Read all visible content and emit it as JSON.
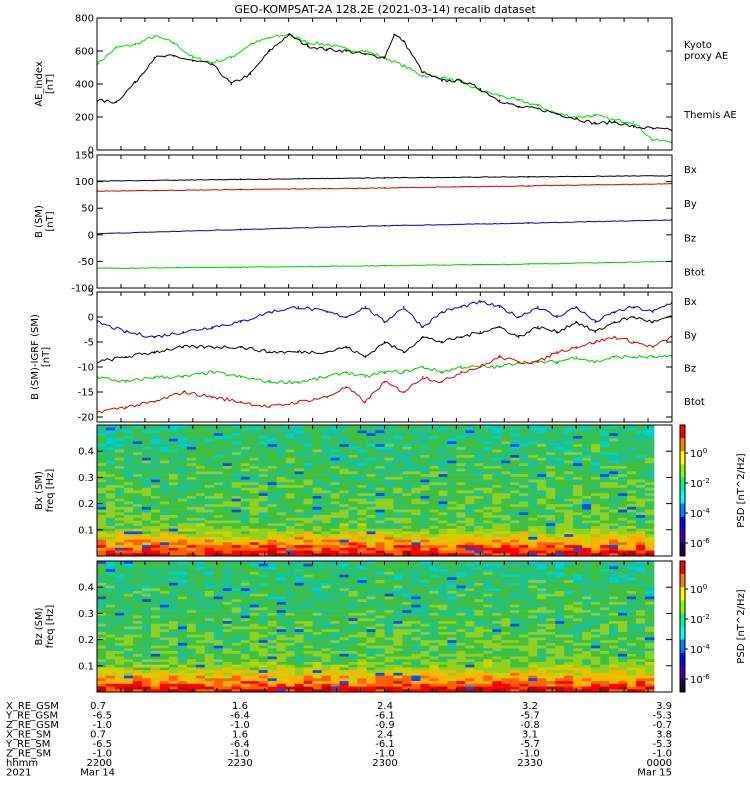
{
  "title": "GEO-KOMPSAT-2A 128.2E (2021-03-14) recalib dataset",
  "colors": {
    "themis": "#000000",
    "kyoto": "#00dd00",
    "bx": "#0000cc",
    "by": "#00cc00",
    "bz": "#dd0000",
    "btot": "#000000"
  },
  "chart_data": [
    {
      "type": "line",
      "ylabel": "AE_index\n[nT]",
      "ylim": [
        0,
        800
      ],
      "yticks": [
        0,
        200,
        400,
        600,
        800
      ],
      "xlim": [
        0,
        120
      ],
      "series": [
        {
          "name": "Kyoto\nproxy AE",
          "color": "#00dd00",
          "x": [
            0,
            4,
            8,
            12,
            16,
            20,
            24,
            28,
            32,
            36,
            40,
            44,
            48,
            52,
            56,
            60,
            64,
            68,
            72,
            76,
            80,
            84,
            88,
            92,
            96,
            100,
            104,
            108,
            112,
            116,
            120
          ],
          "y": [
            520,
            620,
            640,
            690,
            650,
            560,
            530,
            560,
            640,
            680,
            700,
            650,
            640,
            610,
            600,
            560,
            510,
            450,
            440,
            410,
            360,
            330,
            300,
            270,
            220,
            200,
            210,
            180,
            170,
            60,
            50
          ]
        },
        {
          "name": "Themis AE",
          "color": "#000000",
          "x": [
            0,
            4,
            8,
            12,
            16,
            20,
            24,
            28,
            32,
            36,
            40,
            44,
            48,
            52,
            56,
            60,
            62,
            64,
            68,
            72,
            76,
            80,
            84,
            88,
            92,
            96,
            100,
            104,
            108,
            112,
            116,
            120
          ],
          "y": [
            300,
            290,
            410,
            560,
            570,
            540,
            520,
            400,
            460,
            600,
            700,
            630,
            610,
            600,
            580,
            560,
            700,
            660,
            470,
            420,
            420,
            370,
            300,
            260,
            250,
            220,
            190,
            160,
            170,
            140,
            130,
            120
          ]
        }
      ],
      "legend_placement": "right"
    },
    {
      "type": "line",
      "ylabel": "B (SM)\n[nT]",
      "ylim": [
        -100,
        150
      ],
      "yticks": [
        -100,
        -50,
        0,
        50,
        100,
        150
      ],
      "xlim": [
        0,
        120
      ],
      "series": [
        {
          "name": "Bx",
          "color": "#0000cc",
          "x": [
            0,
            30,
            60,
            90,
            120
          ],
          "y": [
            2,
            10,
            17,
            22,
            28
          ]
        },
        {
          "name": "By",
          "color": "#00cc00",
          "x": [
            0,
            30,
            60,
            90,
            120
          ],
          "y": [
            -63,
            -61,
            -58,
            -55,
            -50
          ]
        },
        {
          "name": "Bz",
          "color": "#dd0000",
          "x": [
            0,
            30,
            60,
            90,
            120
          ],
          "y": [
            82,
            85,
            88,
            92,
            96
          ]
        },
        {
          "name": "Btot",
          "color": "#000000",
          "x": [
            0,
            30,
            60,
            90,
            120
          ],
          "y": [
            101,
            104,
            107,
            109,
            111
          ]
        }
      ],
      "legend_placement": "right"
    },
    {
      "type": "line",
      "ylabel": "B (SM)-IGRF (SM)\n[nT]",
      "ylim": [
        -21,
        5
      ],
      "yticks": [
        -20,
        -15,
        -10,
        -5,
        0,
        5
      ],
      "xlim": [
        0,
        120
      ],
      "series": [
        {
          "name": "Bx",
          "color": "#0000cc",
          "x": [
            0,
            6,
            12,
            18,
            24,
            30,
            36,
            42,
            48,
            52,
            56,
            60,
            64,
            68,
            72,
            76,
            80,
            84,
            88,
            92,
            96,
            100,
            104,
            108,
            112,
            116,
            120
          ],
          "y": [
            -1,
            -3,
            -4,
            -3,
            -2,
            -1,
            1,
            2,
            1,
            0,
            2,
            -1,
            2,
            -2,
            1,
            2,
            3,
            2,
            0,
            2,
            0,
            2,
            -1,
            1,
            2,
            1,
            3
          ]
        },
        {
          "name": "By",
          "color": "#00cc00",
          "x": [
            0,
            6,
            12,
            18,
            24,
            30,
            36,
            42,
            48,
            52,
            56,
            60,
            64,
            68,
            72,
            76,
            80,
            84,
            88,
            92,
            96,
            100,
            104,
            108,
            112,
            116,
            120
          ],
          "y": [
            -12,
            -13,
            -12,
            -12,
            -11,
            -12,
            -13,
            -13,
            -12,
            -11,
            -12,
            -11,
            -11,
            -10,
            -11,
            -10,
            -10,
            -10,
            -9,
            -9,
            -9,
            -8,
            -9,
            -8,
            -8,
            -8,
            -8
          ]
        },
        {
          "name": "Bz",
          "color": "#dd0000",
          "x": [
            0,
            6,
            12,
            18,
            24,
            30,
            36,
            42,
            48,
            52,
            56,
            60,
            64,
            68,
            72,
            76,
            80,
            84,
            88,
            92,
            96,
            100,
            104,
            108,
            112,
            116,
            120
          ],
          "y": [
            -19,
            -18,
            -17,
            -15,
            -16,
            -17,
            -18,
            -17,
            -16,
            -14,
            -17,
            -13,
            -15,
            -12,
            -13,
            -11,
            -10,
            -8,
            -9,
            -9,
            -7,
            -6,
            -5,
            -4,
            -5,
            -6,
            -4
          ]
        },
        {
          "name": "Btot",
          "color": "#000000",
          "x": [
            0,
            6,
            12,
            18,
            24,
            30,
            36,
            42,
            48,
            52,
            56,
            60,
            64,
            68,
            72,
            76,
            80,
            84,
            88,
            92,
            96,
            100,
            104,
            108,
            112,
            116,
            120
          ],
          "y": [
            -9,
            -8,
            -7,
            -6,
            -6,
            -6,
            -7,
            -7,
            -7,
            -6,
            -8,
            -5,
            -7,
            -4,
            -5,
            -4,
            -3,
            -2,
            -4,
            -2,
            -3,
            -1,
            -3,
            -1,
            0,
            -1,
            0
          ]
        }
      ],
      "legend_placement": "right"
    },
    {
      "type": "heatmap",
      "ylabel": "Bx (SM)\nfreq [Hz]",
      "ylim": [
        0,
        0.5
      ],
      "yticks": [
        0.1,
        0.2,
        0.3,
        0.4
      ],
      "colorbar": {
        "label": "PSD [nT^2/Hz]",
        "ticks": [
          "10^0",
          "10^-2",
          "10^-4",
          "10^-6"
        ]
      }
    },
    {
      "type": "heatmap",
      "ylabel": "Bz (SM)\nfreq [Hz]",
      "ylim": [
        0,
        0.5
      ],
      "yticks": [
        0.1,
        0.2,
        0.3,
        0.4
      ],
      "colorbar": {
        "label": "PSD [nT^2/Hz]",
        "ticks": [
          "10^0",
          "10^-2",
          "10^-4",
          "10^-6"
        ]
      }
    }
  ],
  "ephemeris": {
    "labels": [
      "X_RE_GSM",
      "Y_RE_GSM",
      "Z_RE_GSM",
      "X_RE_SM",
      "Y_RE_SM",
      "Z_RE_SM",
      "hhmm",
      "2021"
    ],
    "columns": [
      [
        "0.7",
        "-6.5",
        "-1.0",
        "0.7",
        "-6.5",
        "-1.0",
        "2200",
        "Mar 14"
      ],
      [
        "1.6",
        "-6.4",
        "-1.0",
        "1.6",
        "-6.4",
        "-1.0",
        "2230",
        ""
      ],
      [
        "2.4",
        "-6.1",
        "-0.9",
        "2.4",
        "-6.1",
        "-1.0",
        "2300",
        ""
      ],
      [
        "3.2",
        "-5.7",
        "-0.8",
        "3.1",
        "-5.7",
        "-1.0",
        "2330",
        ""
      ],
      [
        "3.9",
        "-5.3",
        "-0.7",
        "3.8",
        "-5.3",
        "-1.0",
        "0000",
        "Mar 15"
      ]
    ]
  }
}
